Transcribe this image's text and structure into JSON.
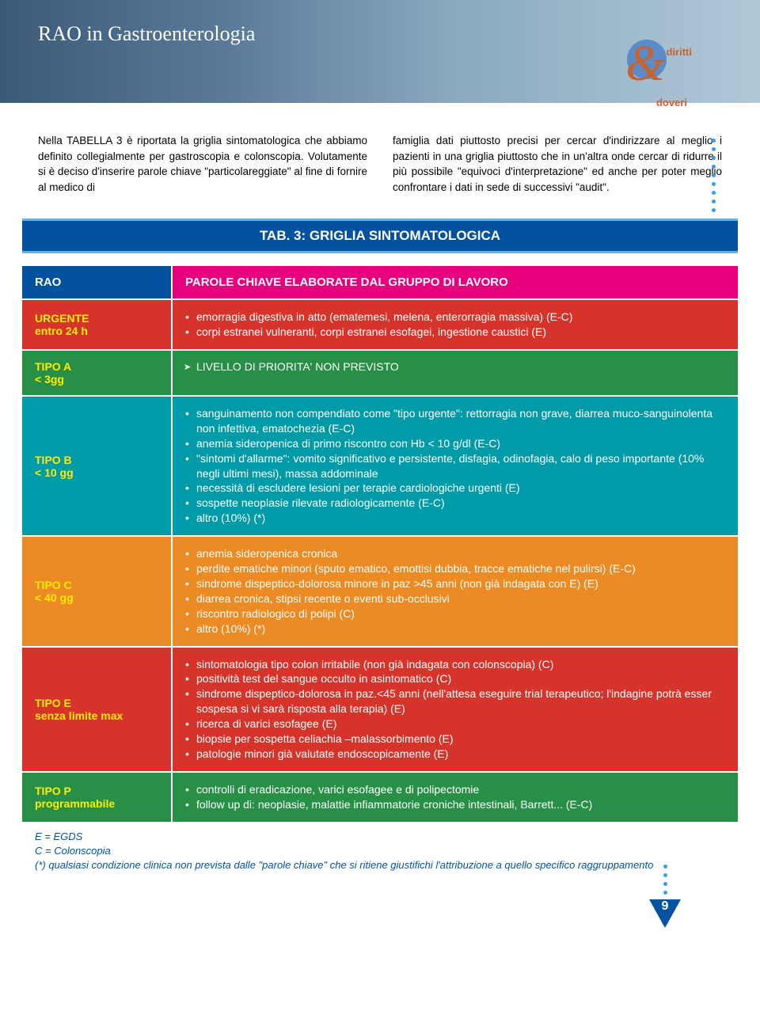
{
  "header": {
    "title": "RAO in Gastroenterologia"
  },
  "badge": {
    "top": "diritti",
    "amp": "&",
    "bottom": "doveri"
  },
  "intro": {
    "left": "Nella TABELLA 3 è riportata la griglia sintomatologica che abbiamo definito collegialmente per gastroscopia e colonscopia. Volutamente si è deciso d'inserire parole chiave \"particolareggiate\" al fine di fornire al medico di",
    "right": "famiglia dati piuttosto precisi per cercar d'indirizzare al meglio i pazienti in una griglia piuttosto che in un'altra onde cercar di ridurre il più possibile \"equivoci d'interpretazione\" ed anche per poter meglio confrontare i dati in sede di successivi \"audit\"."
  },
  "table_title": "TAB. 3: GRIGLIA SINTOMATOLOGICA",
  "colors": {
    "rao_header_left": "#0352a0",
    "rao_header_right": "#e6007e",
    "urgente": "#d6342b",
    "tipo_a": "#288f47",
    "tipo_b": "#009ba8",
    "tipo_c": "#ec8a23",
    "tipo_e": "#d6342b",
    "tipo_p": "#288f47",
    "left_text": "#ffed00",
    "right_text": "#ffffff",
    "header_text": "#ffffff"
  },
  "rows": [
    {
      "id": "header",
      "left_bg": "colors.rao_header_left",
      "right_bg": "colors.rao_header_right",
      "left_lines": [
        "RAO"
      ],
      "header_right": "PAROLE CHIAVE ELABORATE DAL GRUPPO DI LAVORO"
    },
    {
      "id": "urgente",
      "bg": "colors.urgente",
      "left_lines": [
        "URGENTE",
        "entro 24 h"
      ],
      "items": [
        "emorragia digestiva in atto (ematemesi, melena, enterorragia massiva) (E-C)",
        "corpi estranei vulneranti, corpi estranei esofagei, ingestione caustici (E)"
      ]
    },
    {
      "id": "tipo_a",
      "bg": "colors.tipo_a",
      "left_lines": [
        "TIPO A",
        "< 3gg"
      ],
      "arrow_text": "LIVELLO DI PRIORITA' NON PREVISTO"
    },
    {
      "id": "tipo_b",
      "bg": "colors.tipo_b",
      "left_lines": [
        "TIPO B",
        "< 10 gg"
      ],
      "items": [
        "sanguinamento non compendiato come \"tipo urgente\": rettorragia non grave, diarrea muco-sanguinolenta non infettiva, ematochezia (E-C)",
        "anemia sideropenica di primo riscontro con Hb < 10 g/dl (E-C)",
        "\"sintomi d'allarme\": vomito significativo e persistente, disfagia, odinofagia, calo di peso importante (10% negli ultimi mesi), massa addominale",
        "necessità di escludere lesioni per terapie cardiologiche urgenti (E)",
        "sospette neoplasie rilevate radiologicamente (E-C)",
        "altro (10%) (*)"
      ]
    },
    {
      "id": "tipo_c",
      "bg": "colors.tipo_c",
      "left_lines": [
        "TIPO C",
        "< 40 gg"
      ],
      "items": [
        "anemia sideropenica cronica",
        "perdite ematiche minori (sputo ematico, emottisi dubbia, tracce ematiche nel pulirsi) (E-C)",
        "sindrome dispeptico-dolorosa minore in paz >45 anni (non già indagata con E) (E)",
        "diarrea cronica, stipsi recente o eventi sub-occlusivi",
        "riscontro radiologico di polipi (C)",
        "altro (10%) (*)"
      ]
    },
    {
      "id": "tipo_e",
      "bg": "colors.tipo_e",
      "left_lines": [
        "TIPO E",
        "senza limite max"
      ],
      "items": [
        "sintomatologia tipo colon irritabile (non già indagata con colonscopia) (C)",
        "positività test del sangue occulto in asintomatico (C)",
        "sindrome dispeptico-dolorosa in paz.<45 anni (nell'attesa eseguire trial terapeutico; l'indagine potrà esser sospesa si vi sarà risposta alla terapia) (E)",
        "ricerca di varici esofagee (E)",
        "biopsie per sospetta celiachia –malassorbimento (E)",
        "patologie minori già valutate endoscopicamente (E)"
      ]
    },
    {
      "id": "tipo_p",
      "bg": "colors.tipo_p",
      "left_lines": [
        "TIPO P",
        "programmabile"
      ],
      "items": [
        "controlli di eradicazione, varici esofagee e di polipectomie",
        "follow up di: neoplasie, malattie infiammatorie croniche intestinali, Barrett... (E-C)"
      ]
    }
  ],
  "legend": {
    "e": "E = EGDS",
    "c": "C = Colonscopia",
    "star": "(*) qualsiasi condizione clinica non prevista dalle \"parole chiave\" che si ritiene giustifichi l'attribuzione a quello specifico raggruppamento"
  },
  "page_number": "9"
}
